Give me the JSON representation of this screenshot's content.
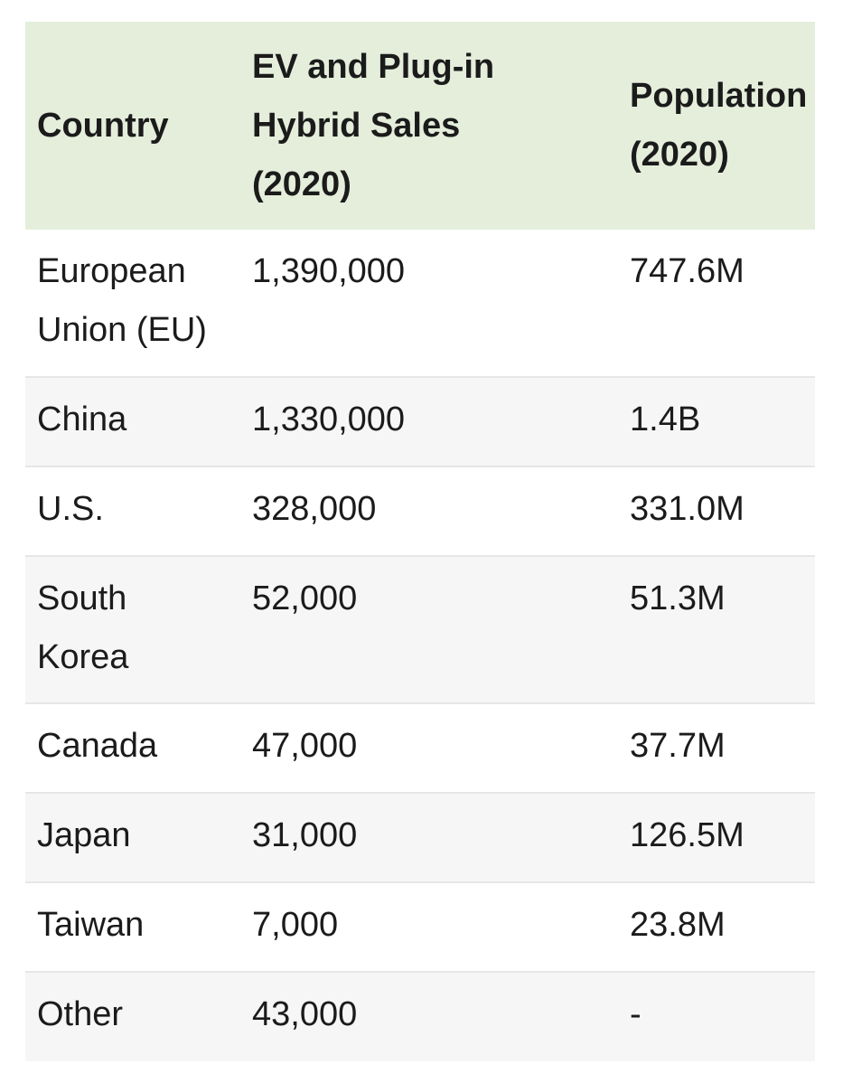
{
  "table": {
    "headers": {
      "country": "Country",
      "sales_line1": "EV and Plug-in",
      "sales_line2": "Hybrid Sales",
      "sales_line3": "(2020)",
      "population_line1": "Population",
      "population_line2": "(2020)"
    },
    "rows": [
      {
        "country_line1": "European",
        "country_line2": "Union (EU)",
        "sales": "1,390,000",
        "population": "747.6M"
      },
      {
        "country_line1": "China",
        "country_line2": "",
        "sales": "1,330,000",
        "population": "1.4B"
      },
      {
        "country_line1": "U.S.",
        "country_line2": "",
        "sales": "328,000",
        "population": "331.0M"
      },
      {
        "country_line1": "South",
        "country_line2": "Korea",
        "sales": "52,000",
        "population": "51.3M"
      },
      {
        "country_line1": "Canada",
        "country_line2": "",
        "sales": "47,000",
        "population": "37.7M"
      },
      {
        "country_line1": "Japan",
        "country_line2": "",
        "sales": "31,000",
        "population": "126.5M"
      },
      {
        "country_line1": "Taiwan",
        "country_line2": "",
        "sales": "7,000",
        "population": "23.8M"
      },
      {
        "country_line1": "Other",
        "country_line2": "",
        "sales": "43,000",
        "population": "-"
      }
    ]
  },
  "colors": {
    "header_background": "#e4eedb",
    "alt_row_background": "#f6f6f6",
    "divider": "#e6e6e6"
  }
}
